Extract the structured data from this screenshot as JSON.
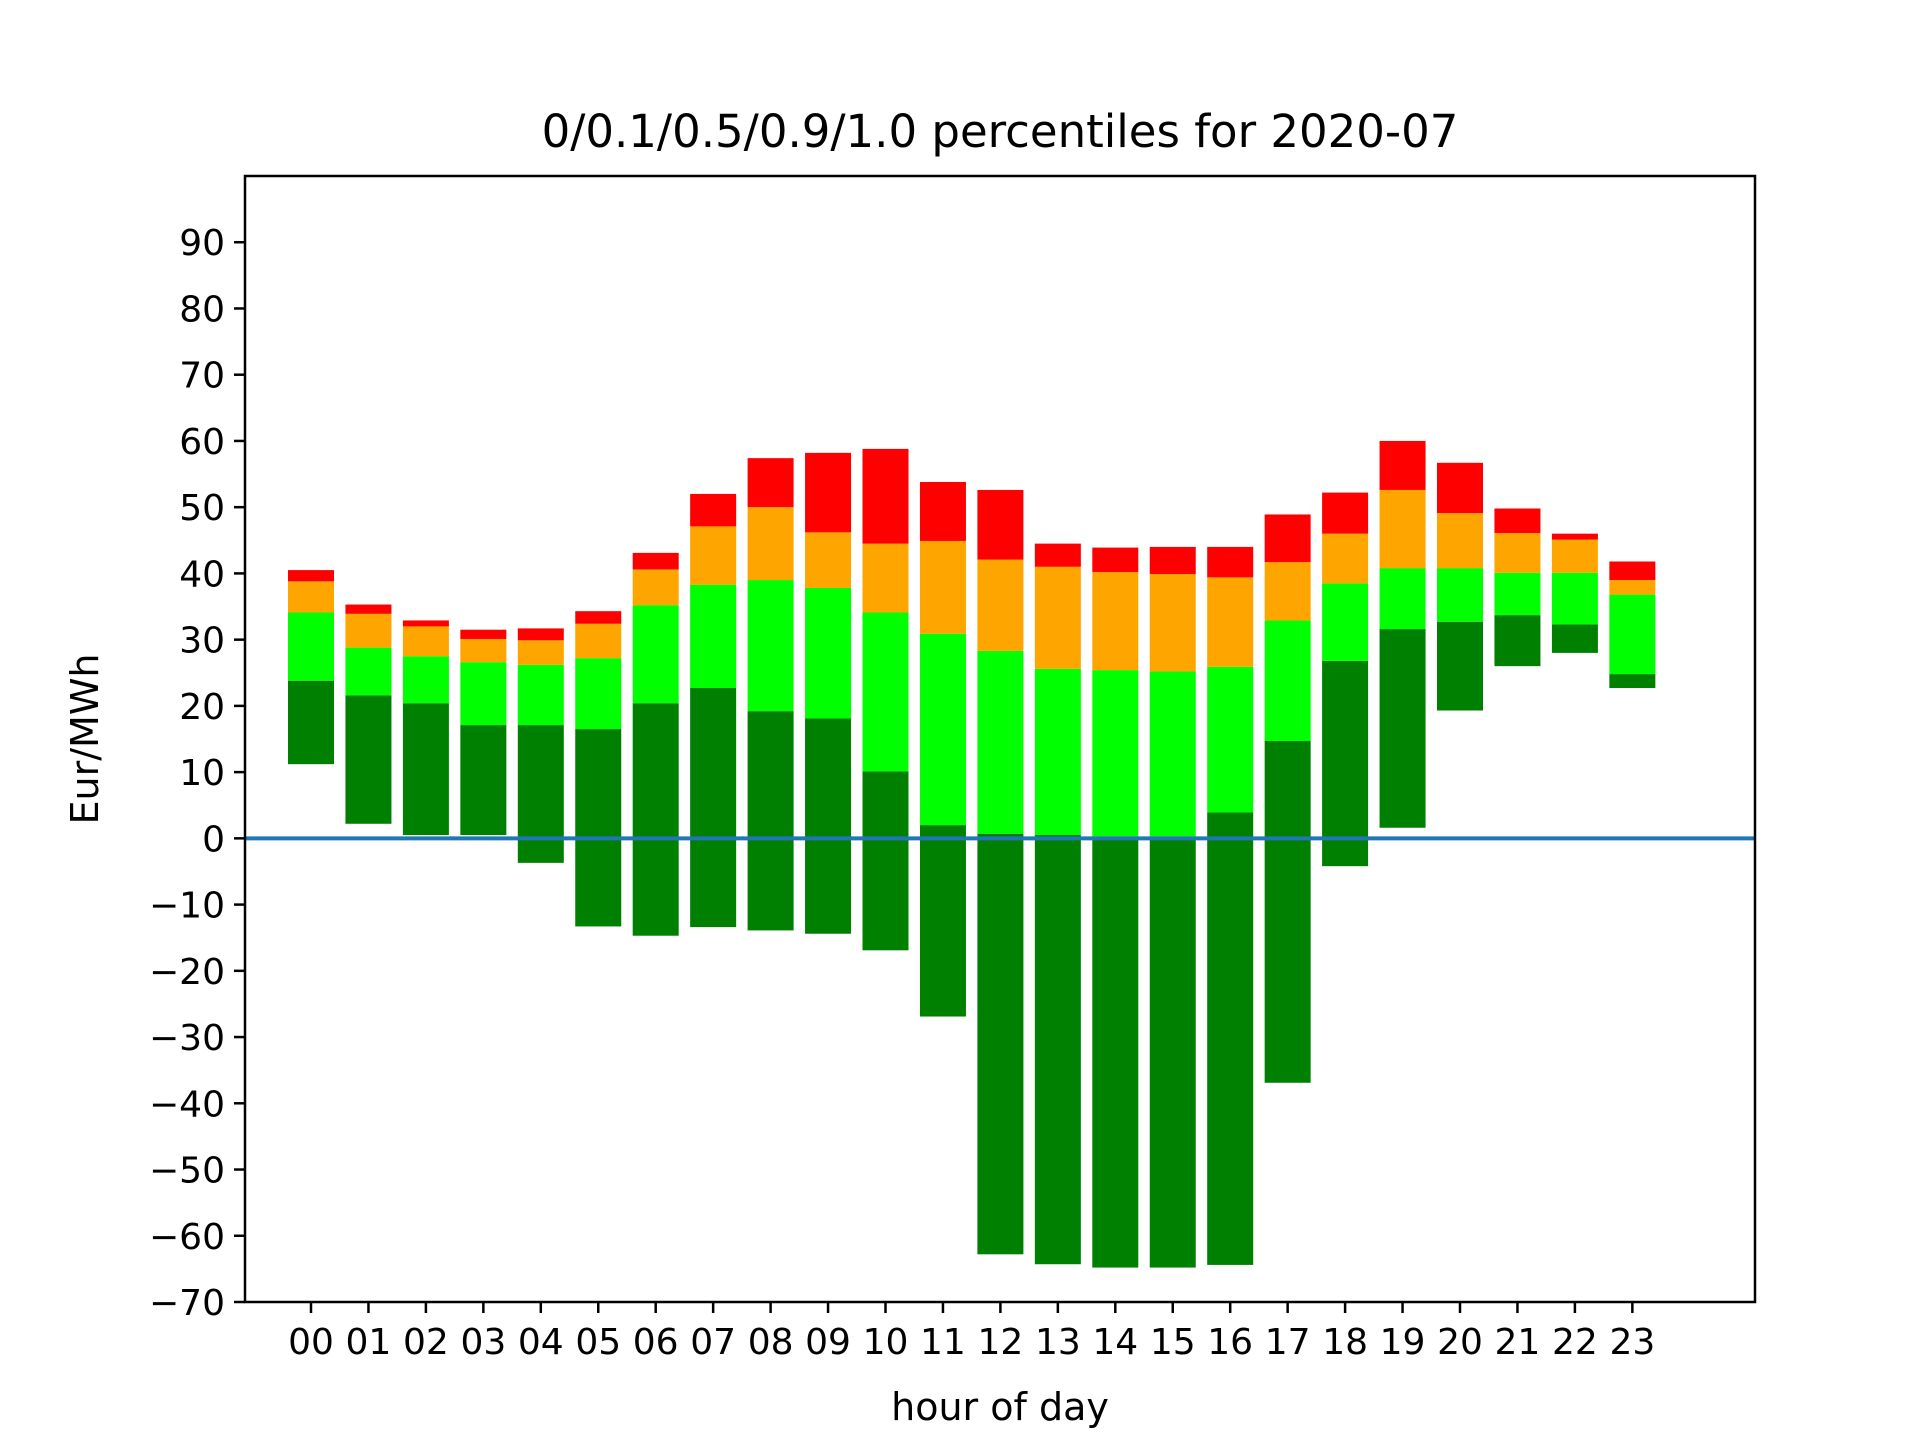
{
  "chart_data": {
    "type": "bar",
    "title": "0/0.1/0.5/0.9/1.0 percentiles for 2020-07",
    "xlabel": "hour of day",
    "ylabel": "Eur/MWh",
    "ylim": [
      -70,
      100
    ],
    "yticks": [
      -70,
      -60,
      -50,
      -40,
      -30,
      -20,
      -10,
      0,
      10,
      20,
      30,
      40,
      50,
      60,
      70,
      80,
      90
    ],
    "ytick_labels": [
      "−70",
      "−60",
      "−50",
      "−40",
      "−30",
      "−20",
      "−10",
      "0",
      "10",
      "20",
      "30",
      "40",
      "50",
      "60",
      "70",
      "80",
      "90"
    ],
    "categories": [
      "00",
      "01",
      "02",
      "03",
      "04",
      "05",
      "06",
      "07",
      "08",
      "09",
      "10",
      "11",
      "12",
      "13",
      "14",
      "15",
      "16",
      "17",
      "18",
      "19",
      "20",
      "21",
      "22",
      "23"
    ],
    "series": [
      {
        "color": "#008000",
        "lower": [
          11.2,
          2.2,
          0.5,
          0.5,
          -3.7,
          -13.3,
          -14.7,
          -13.4,
          -13.9,
          -14.4,
          -16.9,
          -26.9,
          -62.8,
          -64.3,
          -64.8,
          -64.8,
          -64.4,
          -36.9,
          -4.2,
          1.6,
          19.3,
          26.0,
          28.0,
          22.7
        ],
        "upper": [
          23.8,
          21.6,
          20.4,
          17.1,
          17.1,
          16.5,
          20.4,
          22.7,
          19.2,
          18.1,
          10.1,
          2.0,
          0.7,
          0.5,
          0.3,
          0.3,
          3.9,
          14.7,
          26.8,
          31.6,
          32.7,
          33.7,
          32.3,
          24.8
        ]
      },
      {
        "color": "#00ff00",
        "lower": [
          23.8,
          21.6,
          20.4,
          17.1,
          17.1,
          16.5,
          20.4,
          22.7,
          19.2,
          18.1,
          10.1,
          2.0,
          0.7,
          0.5,
          0.3,
          0.3,
          3.9,
          14.7,
          26.8,
          31.6,
          32.7,
          33.7,
          32.3,
          24.8
        ],
        "upper": [
          34.1,
          28.8,
          27.5,
          26.6,
          26.2,
          27.2,
          35.2,
          38.3,
          39.0,
          37.8,
          34.1,
          30.9,
          28.3,
          25.6,
          25.4,
          25.2,
          25.9,
          32.9,
          38.5,
          40.8,
          40.8,
          40.1,
          40.1,
          36.8
        ]
      },
      {
        "color": "#ffa500",
        "lower": [
          34.1,
          28.8,
          27.5,
          26.6,
          26.2,
          27.2,
          35.2,
          38.3,
          39.0,
          37.8,
          34.1,
          30.9,
          28.3,
          25.6,
          25.4,
          25.2,
          25.9,
          32.9,
          38.5,
          40.8,
          40.8,
          40.1,
          40.1,
          36.8
        ],
        "upper": [
          38.8,
          33.9,
          32.0,
          30.1,
          29.9,
          32.4,
          40.6,
          47.1,
          50.0,
          46.2,
          44.5,
          44.9,
          42.1,
          41.0,
          40.2,
          39.9,
          39.4,
          41.7,
          46.0,
          52.6,
          49.1,
          46.1,
          45.1,
          39.0
        ]
      },
      {
        "color": "#ff0000",
        "lower": [
          38.8,
          33.9,
          32.0,
          30.1,
          29.9,
          32.4,
          40.6,
          47.1,
          50.0,
          46.2,
          44.5,
          44.9,
          42.1,
          41.0,
          40.2,
          39.9,
          39.4,
          41.7,
          46.0,
          52.6,
          49.1,
          46.1,
          45.1,
          39.0
        ],
        "upper": [
          40.5,
          35.3,
          32.9,
          31.5,
          31.7,
          34.3,
          43.1,
          52.0,
          57.4,
          58.2,
          58.8,
          53.8,
          52.6,
          44.5,
          43.9,
          44.0,
          44.0,
          48.9,
          52.2,
          60.0,
          56.7,
          49.8,
          46.0,
          41.8
        ]
      }
    ],
    "hline": {
      "y": 0,
      "color": "#1f77b4"
    },
    "grid": false
  }
}
